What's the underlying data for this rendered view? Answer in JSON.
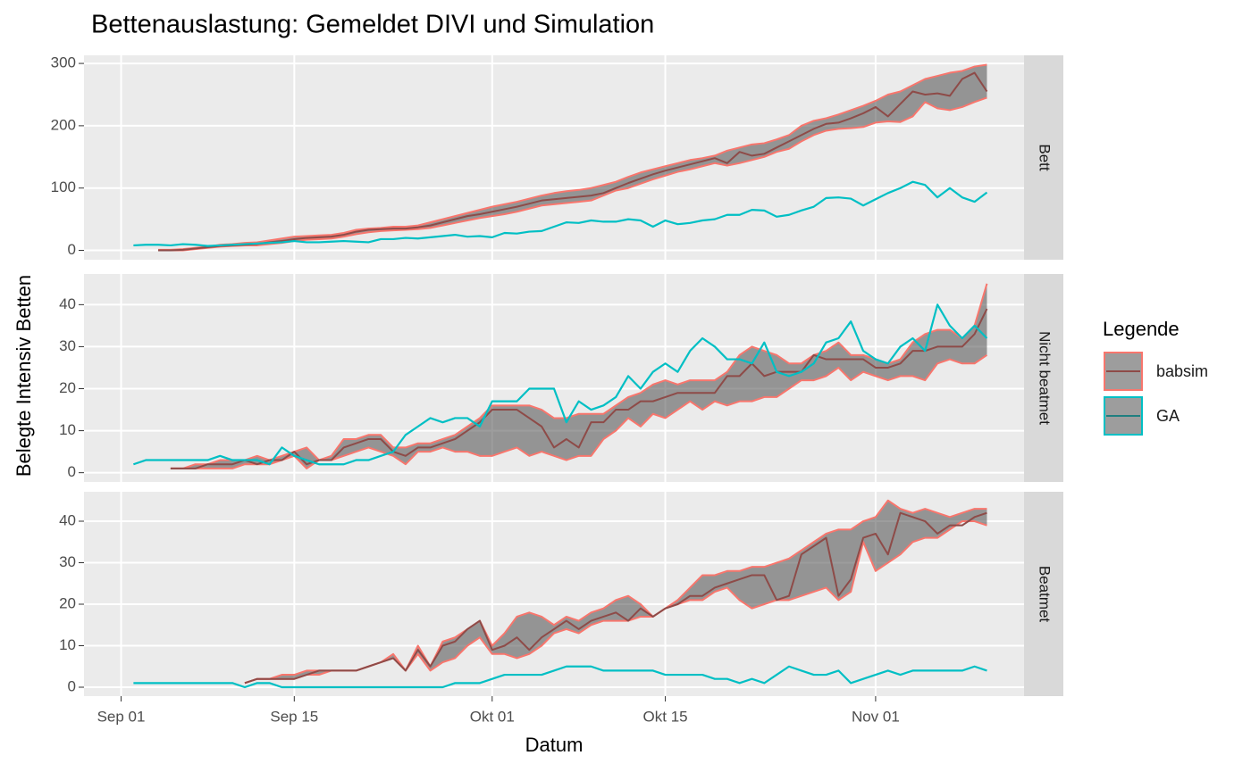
{
  "chart_data": {
    "type": "line",
    "title": "Bettenauslastung: Gemeldet DIVI und Simulation",
    "x_label": "Datum",
    "y_label": "Belegte Intensiv Betten",
    "legend_title": "Legende",
    "legend_position": "right",
    "grid": true,
    "x": [
      "09-02",
      "09-03",
      "09-04",
      "09-05",
      "09-06",
      "09-07",
      "09-08",
      "09-09",
      "09-10",
      "09-11",
      "09-12",
      "09-13",
      "09-14",
      "09-15",
      "09-16",
      "09-17",
      "09-18",
      "09-19",
      "09-20",
      "09-21",
      "09-22",
      "09-23",
      "09-24",
      "09-25",
      "09-26",
      "09-27",
      "09-28",
      "09-29",
      "09-30",
      "10-01",
      "10-02",
      "10-03",
      "10-04",
      "10-05",
      "10-06",
      "10-07",
      "10-08",
      "10-09",
      "10-10",
      "10-11",
      "10-12",
      "10-13",
      "10-14",
      "10-15",
      "10-16",
      "10-17",
      "10-18",
      "10-19",
      "10-20",
      "10-21",
      "10-22",
      "10-23",
      "10-24",
      "10-25",
      "10-26",
      "10-27",
      "10-28",
      "10-29",
      "10-30",
      "10-31",
      "11-01",
      "11-02",
      "11-03",
      "11-04",
      "11-05",
      "11-06",
      "11-07",
      "11-08",
      "11-09",
      "11-10"
    ],
    "xlim": [
      "08-29",
      "11-13"
    ],
    "xticks": [
      {
        "value": "09-01",
        "label": "Sep 01"
      },
      {
        "value": "09-15",
        "label": "Sep 15"
      },
      {
        "value": "10-01",
        "label": "Okt 01"
      },
      {
        "value": "10-15",
        "label": "Okt 15"
      },
      {
        "value": "11-01",
        "label": "Nov 01"
      }
    ],
    "facets": [
      {
        "label": "Bett",
        "ylim": [
          -15,
          313
        ],
        "yticks": [
          0,
          100,
          200,
          300
        ]
      },
      {
        "label": "Nicht beatmet",
        "ylim": [
          -2.2,
          47.3
        ],
        "yticks": [
          0,
          10,
          20,
          30,
          40
        ]
      },
      {
        "label": "Beatmet",
        "ylim": [
          -2.15,
          47.1
        ],
        "yticks": [
          0,
          10,
          20,
          30,
          40
        ]
      }
    ],
    "series": [
      {
        "name": "babsim",
        "color": "#F8766D",
        "line_color": "#8E4B48",
        "fill": "#4d4d4d",
        "values": [
          [
            null,
            null,
            0,
            0,
            1,
            3,
            5,
            7,
            8,
            9,
            10,
            13,
            15,
            18,
            20,
            21,
            22,
            25,
            30,
            33,
            34,
            35,
            35,
            37,
            40,
            45,
            50,
            55,
            58,
            62,
            66,
            70,
            75,
            80,
            82,
            84,
            86,
            88,
            92,
            100,
            108,
            115,
            122,
            128,
            133,
            138,
            143,
            148,
            140,
            158,
            152,
            155,
            165,
            175,
            185,
            195,
            203,
            205,
            212,
            220,
            230,
            215,
            235,
            255,
            250,
            252,
            248,
            275,
            285,
            255
          ],
          [
            null,
            null,
            null,
            1,
            1,
            1,
            2,
            2,
            2,
            3,
            2,
            3,
            3,
            5,
            2,
            3,
            3,
            6,
            7,
            8,
            8,
            5,
            4,
            6,
            6,
            7,
            8,
            10,
            12,
            15,
            15,
            15,
            13,
            11,
            6,
            8,
            6,
            12,
            12,
            15,
            15,
            17,
            17,
            18,
            19,
            19,
            19,
            19,
            23,
            23,
            26,
            23,
            24,
            24,
            24,
            28,
            27,
            27,
            27,
            27,
            25,
            25,
            26,
            29,
            29,
            30,
            30,
            30,
            33,
            39
          ],
          [
            null,
            null,
            null,
            null,
            null,
            null,
            null,
            null,
            null,
            1,
            2,
            2,
            2,
            2,
            3,
            4,
            4,
            4,
            4,
            5,
            6,
            7,
            4,
            9,
            5,
            10,
            11,
            14,
            16,
            9,
            10,
            12,
            9,
            12,
            14,
            16,
            14,
            16,
            17,
            18,
            16,
            19,
            17,
            19,
            20,
            22,
            22,
            24,
            25,
            26,
            27,
            27,
            21,
            22,
            32,
            34,
            36,
            22,
            26,
            36,
            37,
            32,
            42,
            41,
            40,
            37,
            39,
            39,
            41,
            42
          ]
        ],
        "lower": [
          [
            null,
            null,
            0,
            0,
            0,
            2,
            4,
            6,
            7,
            8,
            8,
            10,
            12,
            15,
            17,
            18,
            19,
            22,
            26,
            29,
            31,
            32,
            33,
            34,
            36,
            40,
            44,
            48,
            52,
            55,
            58,
            62,
            67,
            72,
            74,
            76,
            78,
            80,
            88,
            96,
            100,
            107,
            114,
            120,
            126,
            130,
            135,
            140,
            136,
            140,
            145,
            150,
            158,
            163,
            175,
            185,
            192,
            195,
            196,
            198,
            205,
            207,
            206,
            215,
            238,
            228,
            225,
            230,
            238,
            245
          ],
          [
            null,
            null,
            null,
            1,
            1,
            1,
            1,
            1,
            1,
            2,
            2,
            2,
            3,
            4,
            1,
            3,
            3,
            4,
            5,
            6,
            5,
            4,
            2,
            5,
            5,
            6,
            5,
            5,
            4,
            4,
            5,
            6,
            4,
            5,
            4,
            3,
            4,
            4,
            8,
            10,
            13,
            11,
            14,
            13,
            15,
            17,
            15,
            17,
            16,
            17,
            17,
            18,
            18,
            20,
            22,
            22,
            23,
            25,
            22,
            24,
            23,
            22,
            23,
            23,
            22,
            26,
            27,
            26,
            26,
            28
          ],
          [
            null,
            null,
            null,
            null,
            null,
            null,
            null,
            null,
            null,
            1,
            2,
            2,
            2,
            2,
            3,
            3,
            4,
            4,
            4,
            5,
            6,
            7,
            4,
            8,
            4,
            6,
            7,
            10,
            12,
            8,
            8,
            7,
            8,
            10,
            13,
            14,
            13,
            15,
            16,
            16,
            16,
            17,
            17,
            19,
            20,
            21,
            21,
            23,
            24,
            21,
            19,
            20,
            21,
            21,
            22,
            23,
            24,
            21,
            23,
            35,
            28,
            30,
            32,
            35,
            36,
            36,
            38,
            40,
            40,
            39
          ]
        ],
        "upper": [
          [
            null,
            null,
            1,
            1,
            2,
            4,
            6,
            9,
            10,
            12,
            13,
            16,
            19,
            22,
            23,
            24,
            25,
            28,
            33,
            35,
            36,
            38,
            38,
            40,
            45,
            50,
            55,
            60,
            65,
            70,
            74,
            78,
            83,
            88,
            92,
            95,
            97,
            100,
            105,
            110,
            118,
            125,
            130,
            135,
            140,
            145,
            148,
            152,
            160,
            165,
            170,
            172,
            178,
            185,
            200,
            208,
            212,
            218,
            225,
            232,
            240,
            250,
            255,
            265,
            275,
            280,
            285,
            288,
            295,
            298
          ],
          [
            null,
            null,
            null,
            1,
            1,
            2,
            2,
            3,
            3,
            3,
            4,
            3,
            4,
            5,
            6,
            3,
            4,
            8,
            8,
            9,
            9,
            6,
            6,
            7,
            7,
            8,
            9,
            11,
            13,
            16,
            16,
            16,
            16,
            15,
            13,
            13,
            14,
            14,
            14,
            16,
            18,
            19,
            21,
            22,
            21,
            22,
            22,
            22,
            24,
            28,
            30,
            29,
            28,
            26,
            26,
            28,
            29,
            31,
            28,
            28,
            27,
            26,
            27,
            31,
            33,
            34,
            34,
            32,
            35,
            45
          ],
          [
            null,
            null,
            null,
            null,
            null,
            null,
            null,
            null,
            null,
            1,
            2,
            2,
            3,
            3,
            4,
            4,
            4,
            4,
            4,
            5,
            6,
            8,
            4,
            10,
            5,
            11,
            12,
            14,
            16,
            10,
            13,
            17,
            18,
            17,
            15,
            17,
            16,
            18,
            19,
            21,
            22,
            20,
            17,
            19,
            21,
            24,
            27,
            27,
            28,
            28,
            29,
            29,
            30,
            31,
            33,
            35,
            37,
            38,
            38,
            40,
            41,
            45,
            43,
            42,
            43,
            42,
            41,
            42,
            43,
            43
          ]
        ]
      },
      {
        "name": "GA",
        "color": "#00BFC4",
        "line_color": "#1F7F80",
        "fill": "#4d4d4d",
        "values": [
          [
            8,
            9,
            9,
            8,
            10,
            9,
            7,
            8,
            9,
            10,
            11,
            12,
            13,
            15,
            13,
            13,
            14,
            15,
            14,
            13,
            18,
            18,
            20,
            19,
            21,
            23,
            25,
            22,
            23,
            21,
            28,
            27,
            30,
            31,
            38,
            45,
            44,
            48,
            46,
            46,
            50,
            48,
            38,
            48,
            42,
            44,
            48,
            50,
            57,
            57,
            65,
            64,
            54,
            57,
            64,
            70,
            84,
            85,
            83,
            72,
            82,
            92,
            100,
            110,
            105,
            85,
            100,
            85,
            78,
            93
          ],
          [
            2,
            3,
            3,
            3,
            3,
            3,
            3,
            4,
            3,
            3,
            3,
            2,
            6,
            4,
            3,
            2,
            2,
            2,
            3,
            3,
            4,
            5,
            9,
            11,
            13,
            12,
            13,
            13,
            11,
            17,
            17,
            17,
            20,
            20,
            20,
            12,
            17,
            15,
            16,
            18,
            23,
            20,
            24,
            26,
            24,
            29,
            32,
            30,
            27,
            27,
            26,
            31,
            24,
            23,
            24,
            26,
            31,
            32,
            36,
            29,
            27,
            26,
            30,
            32,
            29,
            40,
            35,
            32,
            35,
            32
          ],
          [
            1,
            1,
            1,
            1,
            1,
            1,
            1,
            1,
            1,
            0,
            1,
            1,
            0,
            0,
            0,
            0,
            0,
            0,
            0,
            0,
            0,
            0,
            0,
            0,
            0,
            0,
            1,
            1,
            1,
            2,
            3,
            3,
            3,
            3,
            4,
            5,
            5,
            5,
            4,
            4,
            4,
            4,
            4,
            3,
            3,
            3,
            3,
            2,
            2,
            1,
            2,
            1,
            3,
            5,
            4,
            3,
            3,
            4,
            1,
            2,
            3,
            4,
            3,
            4,
            4,
            4,
            4,
            4,
            5,
            4
          ]
        ]
      }
    ]
  }
}
